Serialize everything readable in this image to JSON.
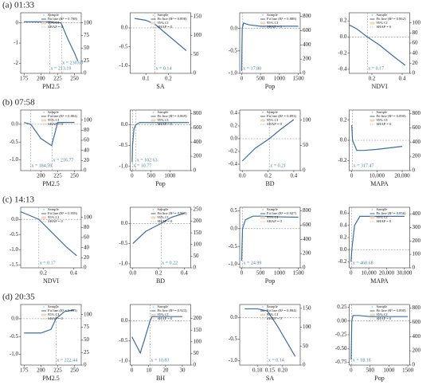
{
  "row_labels": [
    "(a) 01:33",
    "(b) 07:58",
    "(c) 14:13",
    "(d) 20:35"
  ],
  "chart_data": [
    {
      "type": "line",
      "xlabel": "PM2.5",
      "xlim": [
        170,
        260
      ],
      "xticks": [
        175,
        200,
        225,
        250
      ],
      "ylim": [
        -2.5,
        0.5
      ],
      "yticks": [
        -2,
        -1,
        0
      ],
      "y2lim": [
        0,
        120
      ],
      "y2ticks": [
        0,
        25,
        50,
        75,
        100
      ],
      "x": [
        175,
        200,
        213,
        230,
        240,
        250,
        255
      ],
      "series": [
        {
          "name": "Fit line (R² = 0.708)",
          "color": "#3a6ea5",
          "values": [
            0.05,
            0.05,
            0.05,
            0,
            -0.8,
            -1.5,
            -1.9
          ]
        }
      ],
      "thresholds": [
        {
          "value": 213.19,
          "label": "x = 213.19"
        },
        {
          "value": 230.69,
          "label": "x = 230.69"
        }
      ],
      "sample_label": "Sample",
      "ci_label": "95% CI",
      "zero_label": "SHAP = 0"
    },
    {
      "type": "line",
      "xlabel": "SA",
      "xlim": [
        0.03,
        0.3
      ],
      "xticks": [
        0.1,
        0.2
      ],
      "ylim": [
        -1.2,
        0.4
      ],
      "yticks": [
        {
          "value": -1,
          "label": "-1.0"
        },
        -0.5,
        {
          "value": 0,
          "label": "0.0"
        }
      ],
      "y2lim": [
        0,
        160
      ],
      "y2ticks": [
        0,
        50,
        100,
        150
      ],
      "x": [
        0.05,
        0.1,
        0.14,
        0.2,
        0.25,
        0.28
      ],
      "series": [
        {
          "name": "Fit line (R² = 0.898)",
          "color": "#3a6ea5",
          "values": [
            0.25,
            0.2,
            0.1,
            -0.2,
            -0.45,
            -0.6
          ]
        }
      ],
      "thresholds": [
        {
          "value": 0.14,
          "label": "x = 0.14"
        }
      ],
      "sample_label": "Sample",
      "ci_label": "95% CI",
      "zero_label": "SHAP = 0"
    },
    {
      "type": "line",
      "xlabel": "Pop",
      "xlim": [
        -50,
        1550
      ],
      "xticks": [
        0,
        500,
        1000,
        1500
      ],
      "ylim": [
        -1.0,
        0.35
      ],
      "yticks": [
        {
          "value": -1,
          "label": "-1.0"
        },
        -0.5,
        {
          "value": 0,
          "label": "0.0"
        }
      ],
      "y2lim": [
        0,
        850
      ],
      "y2ticks": [
        0,
        200,
        400,
        600,
        800
      ],
      "x": [
        0,
        10,
        17.8,
        50,
        200,
        500,
        1000,
        1500
      ],
      "series": [
        {
          "name": "Fit line (R² = 0.888)",
          "color": "#3a6ea5",
          "values": [
            -0.95,
            -0.4,
            0,
            0.12,
            0.08,
            0.05,
            0.05,
            0.05
          ]
        }
      ],
      "thresholds": [
        {
          "value": 17.8,
          "label": "x = 17.80"
        }
      ],
      "sample_label": "Sample",
      "ci_label": "95% CI",
      "zero_label": "SHAP = 0"
    },
    {
      "type": "line",
      "xlabel": "NDVI",
      "xlim": [
        0.05,
        0.45
      ],
      "xticks": [
        0.2,
        0.4
      ],
      "ylim": [
        -0.45,
        0.3
      ],
      "yticks": [
        -0.4,
        -0.2,
        {
          "value": 0,
          "label": "0.0"
        },
        0.2
      ],
      "y2lim": [
        0,
        120
      ],
      "y2ticks": [
        0,
        20,
        40,
        60,
        80,
        100
      ],
      "x": [
        0.05,
        0.1,
        0.17,
        0.25,
        0.35,
        0.42
      ],
      "series": [
        {
          "name": "Fit line (R² = 0.862)",
          "color": "#3a6ea5",
          "values": [
            0.15,
            0.1,
            0,
            -0.1,
            -0.25,
            -0.35
          ]
        }
      ],
      "thresholds": [
        {
          "value": 0.17,
          "label": "x = 0.17"
        }
      ],
      "sample_label": "Sample",
      "ci_label": "95% CI",
      "zero_label": "SHAP = 0"
    },
    {
      "type": "line",
      "xlabel": "PM2.5",
      "xlim": [
        170,
        260
      ],
      "xticks": [
        200,
        225,
        250
      ],
      "ylim": [
        -1.3,
        0.4
      ],
      "yticks": [
        {
          "value": -1,
          "label": "-1.0"
        },
        -0.5,
        {
          "value": 0,
          "label": "0.0"
        }
      ],
      "y2lim": [
        0,
        120
      ],
      "y2ticks": [
        0,
        20,
        40,
        60,
        80,
        100
      ],
      "x": [
        175,
        185,
        200,
        216,
        225,
        240,
        250
      ],
      "series": [
        {
          "name": "Fit line (R² = 0.804)",
          "color": "#3a6ea5",
          "values": [
            0.05,
            0,
            -0.4,
            -0.6,
            0.05,
            0.05,
            0.05
          ]
        }
      ],
      "thresholds": [
        {
          "value": 184.59,
          "label": "x = 184.59"
        },
        {
          "value": 216.77,
          "label": "x = 216.77"
        }
      ],
      "sample_label": "Sample",
      "ci_label": "95% CI",
      "zero_label": "SHAP = 0"
    },
    {
      "type": "line",
      "xlabel": "Pop",
      "xlim": [
        -50,
        1550
      ],
      "xticks": [
        0,
        500,
        1000
      ],
      "ylim": [
        -1.1,
        0.35
      ],
      "yticks": [
        {
          "value": -1,
          "label": "-1.0"
        },
        -0.5,
        {
          "value": 0,
          "label": "0.0"
        }
      ],
      "y2lim": [
        0,
        850
      ],
      "y2ticks": [
        0,
        200,
        400,
        600,
        800
      ],
      "x": [
        0,
        10.77,
        50,
        102.63,
        200,
        500,
        1000,
        1500
      ],
      "series": [
        {
          "name": "Fit line (R² = 0.869)",
          "color": "#3a6ea5",
          "values": [
            -0.9,
            -0.5,
            -0.1,
            0,
            0.05,
            0.05,
            0.05,
            0.05
          ]
        }
      ],
      "thresholds": [
        {
          "value": 10.77,
          "label": "x = 10.77"
        },
        {
          "value": 102.63,
          "label": "x = 102.63"
        }
      ],
      "sample_label": "Sample",
      "ci_label": "95% CI",
      "zero_label": "SHAP = 0"
    },
    {
      "type": "line",
      "xlabel": "BD",
      "xlim": [
        -0.02,
        0.45
      ],
      "xticks": [
        {
          "value": 0,
          "label": "0.0"
        },
        0.2,
        0.4
      ],
      "ylim": [
        -0.5,
        0.45
      ],
      "yticks": [
        -0.4,
        -0.2,
        {
          "value": 0,
          "label": "0.0"
        },
        0.2,
        0.4
      ],
      "y2lim": [
        0,
        120
      ],
      "y2ticks": [
        0,
        50,
        100
      ],
      "x": [
        0,
        0.1,
        0.21,
        0.3,
        0.4
      ],
      "series": [
        {
          "name": "Fit line (R² = 0.893)",
          "color": "#3a6ea5",
          "values": [
            -0.35,
            -0.15,
            0,
            0.15,
            0.3
          ]
        }
      ],
      "thresholds": [
        {
          "value": 0.21,
          "label": "x = 0.21"
        }
      ],
      "sample_label": "Sample",
      "ci_label": "95% CI",
      "zero_label": "SHAP = 0"
    },
    {
      "type": "line",
      "xlabel": "MAPA",
      "xlim": [
        -1000,
        23000
      ],
      "xticks": [
        0,
        {
          "value": 10000,
          "label": "10,000"
        },
        {
          "value": 20000,
          "label": "20,000"
        }
      ],
      "ylim": [
        -0.3,
        0.3
      ],
      "yticks": [
        -0.2,
        {
          "value": 0,
          "label": "0.0"
        },
        0.2
      ],
      "y2lim": [
        0,
        850
      ],
      "y2ticks": [
        0,
        200,
        400,
        600,
        800
      ],
      "x": [
        0,
        317.47,
        2000,
        5000,
        10000,
        20000
      ],
      "series": [
        {
          "name": "Fit line (R² = 0.890)",
          "color": "#3a6ea5",
          "values": [
            0.15,
            0,
            -0.1,
            -0.1,
            -0.09,
            -0.06
          ]
        }
      ],
      "thresholds": [
        {
          "value": 317.47,
          "label": "x = 317.47"
        }
      ],
      "sample_label": "Sample",
      "ci_label": "95% CI",
      "zero_label": "SHAP = 0"
    },
    {
      "type": "line",
      "xlabel": "NDVI",
      "xlim": [
        0.05,
        0.45
      ],
      "xticks": [
        0.2,
        0.4
      ],
      "ylim": [
        -1.6,
        0.4
      ],
      "yticks": [
        {
          "value": -1.5,
          "label": "-1.5"
        },
        {
          "value": -1,
          "label": "-1.0"
        },
        -0.5,
        {
          "value": 0,
          "label": "0.0"
        }
      ],
      "y2lim": [
        0,
        120
      ],
      "y2ticks": [
        0,
        20,
        40,
        60,
        80,
        100
      ],
      "x": [
        0.05,
        0.1,
        0.17,
        0.25,
        0.35,
        0.42
      ],
      "series": [
        {
          "name": "Fit line (R² = 0.958)",
          "color": "#3a6ea5",
          "values": [
            0.25,
            0.15,
            0,
            -0.4,
            -0.9,
            -1.2
          ]
        }
      ],
      "thresholds": [
        {
          "value": 0.17,
          "label": "x = 0.17"
        }
      ],
      "sample_label": "Sample",
      "ci_label": "95% CI",
      "zero_label": "SHAP = 0"
    },
    {
      "type": "line",
      "xlabel": "BD",
      "xlim": [
        -0.02,
        0.45
      ],
      "xticks": [
        {
          "value": 0,
          "label": "0.0"
        },
        0.2,
        0.4
      ],
      "ylim": [
        -1.1,
        0.4
      ],
      "yticks": [
        {
          "value": -1,
          "label": "-1.0"
        },
        -0.5,
        {
          "value": 0,
          "label": "0.0"
        }
      ],
      "y2lim": [
        0,
        260
      ],
      "y2ticks": [
        0,
        50,
        100,
        150,
        200,
        250
      ],
      "x": [
        0,
        0.1,
        0.22,
        0.3,
        0.4
      ],
      "series": [
        {
          "name": "Fit line (R² = 0.909)",
          "color": "#3a6ea5",
          "values": [
            -0.5,
            -0.2,
            0,
            0.15,
            0.25
          ]
        }
      ],
      "thresholds": [
        {
          "value": 0.22,
          "label": "x = 0.22"
        }
      ],
      "sample_label": "Sample",
      "ci_label": "95% CI",
      "zero_label": "SHAP = 0"
    },
    {
      "type": "line",
      "xlabel": "Pop",
      "xlim": [
        -50,
        1550
      ],
      "xticks": [
        0,
        500,
        1000,
        1500
      ],
      "ylim": [
        -1.1,
        0.6
      ],
      "yticks": [
        {
          "value": -1,
          "label": "-1.0"
        },
        -0.5,
        {
          "value": 0,
          "label": "0.0"
        },
        0.5
      ],
      "y2lim": [
        0,
        850
      ],
      "y2ticks": [
        0,
        200,
        400,
        600,
        800
      ],
      "x": [
        0,
        24.99,
        100,
        300,
        500,
        1000,
        1500
      ],
      "series": [
        {
          "name": "Fit line (R² = 0.927)",
          "color": "#3a6ea5",
          "values": [
            -0.9,
            0,
            0.25,
            0.35,
            0.35,
            0.33,
            0.32
          ]
        }
      ],
      "thresholds": [
        {
          "value": 24.99,
          "label": "x = 24.99"
        }
      ],
      "sample_label": "Sample",
      "ci_label": "95% CI",
      "zero_label": "SHAP = 0"
    },
    {
      "type": "line",
      "xlabel": "MAPA",
      "xlim": [
        -1000,
        33000
      ],
      "xticks": [
        0,
        {
          "value": 10000,
          "label": "10,000"
        },
        {
          "value": 20000,
          "label": "20,000"
        },
        {
          "value": 30000,
          "label": "30,000"
        }
      ],
      "ylim": [
        -0.3,
        0.7
      ],
      "yticks": [
        -0.2,
        {
          "value": 0,
          "label": "0.0"
        },
        0.2,
        0.4,
        0.6
      ],
      "y2lim": [
        0,
        450
      ],
      "y2ticks": [
        0,
        100,
        200,
        300,
        400
      ],
      "x": [
        0,
        460.68,
        2000,
        5000,
        10000,
        20000,
        30000
      ],
      "series": [
        {
          "name": "Fit line (R² = 0.856)",
          "color": "#3a6ea5",
          "values": [
            -0.2,
            0,
            0.4,
            0.55,
            0.55,
            0.55,
            0.55
          ]
        }
      ],
      "thresholds": [
        {
          "value": 460.68,
          "label": "x = 460.68"
        }
      ],
      "sample_label": "Sample",
      "ci_label": "95% CI",
      "zero_label": "SHAP = 0"
    },
    {
      "type": "line",
      "xlabel": "PM2.5",
      "xlim": [
        170,
        260
      ],
      "xticks": [
        175,
        200,
        225,
        250
      ],
      "ylim": [
        -1.3,
        0.4
      ],
      "yticks": [
        {
          "value": -1,
          "label": "-1.0"
        },
        -0.5,
        {
          "value": 0,
          "label": "0.0"
        }
      ],
      "y2lim": [
        0,
        120
      ],
      "y2ticks": [
        0,
        25,
        50,
        75,
        100
      ],
      "x": [
        175,
        200,
        215,
        222.44,
        235,
        250
      ],
      "series": [
        {
          "name": "Fit line (R² = 0.891)",
          "color": "#3a6ea5",
          "values": [
            -0.4,
            -0.4,
            -0.3,
            0,
            0.2,
            0.25
          ]
        }
      ],
      "thresholds": [
        {
          "value": 222.44,
          "label": "x = 222.44"
        }
      ],
      "sample_label": "Sample",
      "ci_label": "95% CI",
      "zero_label": "SHAP = 0"
    },
    {
      "type": "line",
      "xlabel": "BH",
      "xlim": [
        -1,
        35
      ],
      "xticks": [
        0,
        10,
        20,
        30
      ],
      "ylim": [
        -1.1,
        0.4
      ],
      "yticks": [
        {
          "value": -1,
          "label": "-1.0"
        },
        -0.5,
        {
          "value": 0,
          "label": "0.0"
        }
      ],
      "y2lim": [
        0,
        260
      ],
      "y2ticks": [
        0,
        50,
        100,
        150,
        200
      ],
      "x": [
        0,
        5,
        8,
        10.83,
        12,
        20,
        30
      ],
      "series": [
        {
          "name": "Fit line (R² = 0.923)",
          "color": "#3a6ea5",
          "values": [
            -0.4,
            -0.8,
            -0.4,
            0,
            0.1,
            0.1,
            0.1
          ]
        }
      ],
      "thresholds": [
        {
          "value": 10.83,
          "label": "x = 10.83"
        }
      ],
      "sample_label": "Sample",
      "ci_label": "95% CI",
      "zero_label": "SHAP = 0"
    },
    {
      "type": "line",
      "xlabel": "SA",
      "xlim": [
        0.03,
        0.27
      ],
      "xticks": [
        {
          "value": 0.1,
          "label": "0.10"
        },
        0.15,
        {
          "value": 0.2,
          "label": "0.20"
        }
      ],
      "ylim": [
        -1.1,
        0.3
      ],
      "yticks": [
        {
          "value": -1,
          "label": "-1.0"
        },
        -0.5,
        {
          "value": 0,
          "label": "0.0"
        }
      ],
      "y2lim": [
        0,
        160
      ],
      "y2ticks": [
        0,
        50,
        100,
        150
      ],
      "x": [
        0.05,
        0.1,
        0.14,
        0.18,
        0.22,
        0.25
      ],
      "series": [
        {
          "name": "Fit line (R² = 0.884)",
          "color": "#3a6ea5",
          "values": [
            0.2,
            0.2,
            0.15,
            -0.2,
            -0.6,
            -0.9
          ]
        }
      ],
      "thresholds": [
        {
          "value": 0.14,
          "label": "x = 0.14"
        }
      ],
      "sample_label": "Sample",
      "ci_label": "95% CI",
      "zero_label": "SHAP = 0"
    },
    {
      "type": "line",
      "xlabel": "Pop",
      "xlim": [
        -50,
        1550
      ],
      "xticks": [
        0,
        500,
        1000,
        1500
      ],
      "ylim": [
        -0.8,
        0.3
      ],
      "yticks": [
        -0.75,
        {
          "value": -0.5,
          "label": "-0.50"
        },
        -0.25,
        {
          "value": 0,
          "label": "0.00"
        },
        0.25
      ],
      "y2lim": [
        0,
        850
      ],
      "y2ticks": [
        0,
        200,
        400,
        600,
        800
      ],
      "x": [
        0,
        10,
        18.16,
        50,
        200,
        500,
        1000,
        1500
      ],
      "series": [
        {
          "name": "Fit line (R² = 0.890)",
          "color": "#3a6ea5",
          "values": [
            -0.7,
            -0.3,
            0,
            0.1,
            0.1,
            0.08,
            0.08,
            0.08
          ]
        }
      ],
      "thresholds": [
        {
          "value": 18.16,
          "label": "x = 18.16"
        }
      ],
      "sample_label": "Sample",
      "ci_label": "95% CI",
      "zero_label": "SHAP = 0"
    }
  ]
}
